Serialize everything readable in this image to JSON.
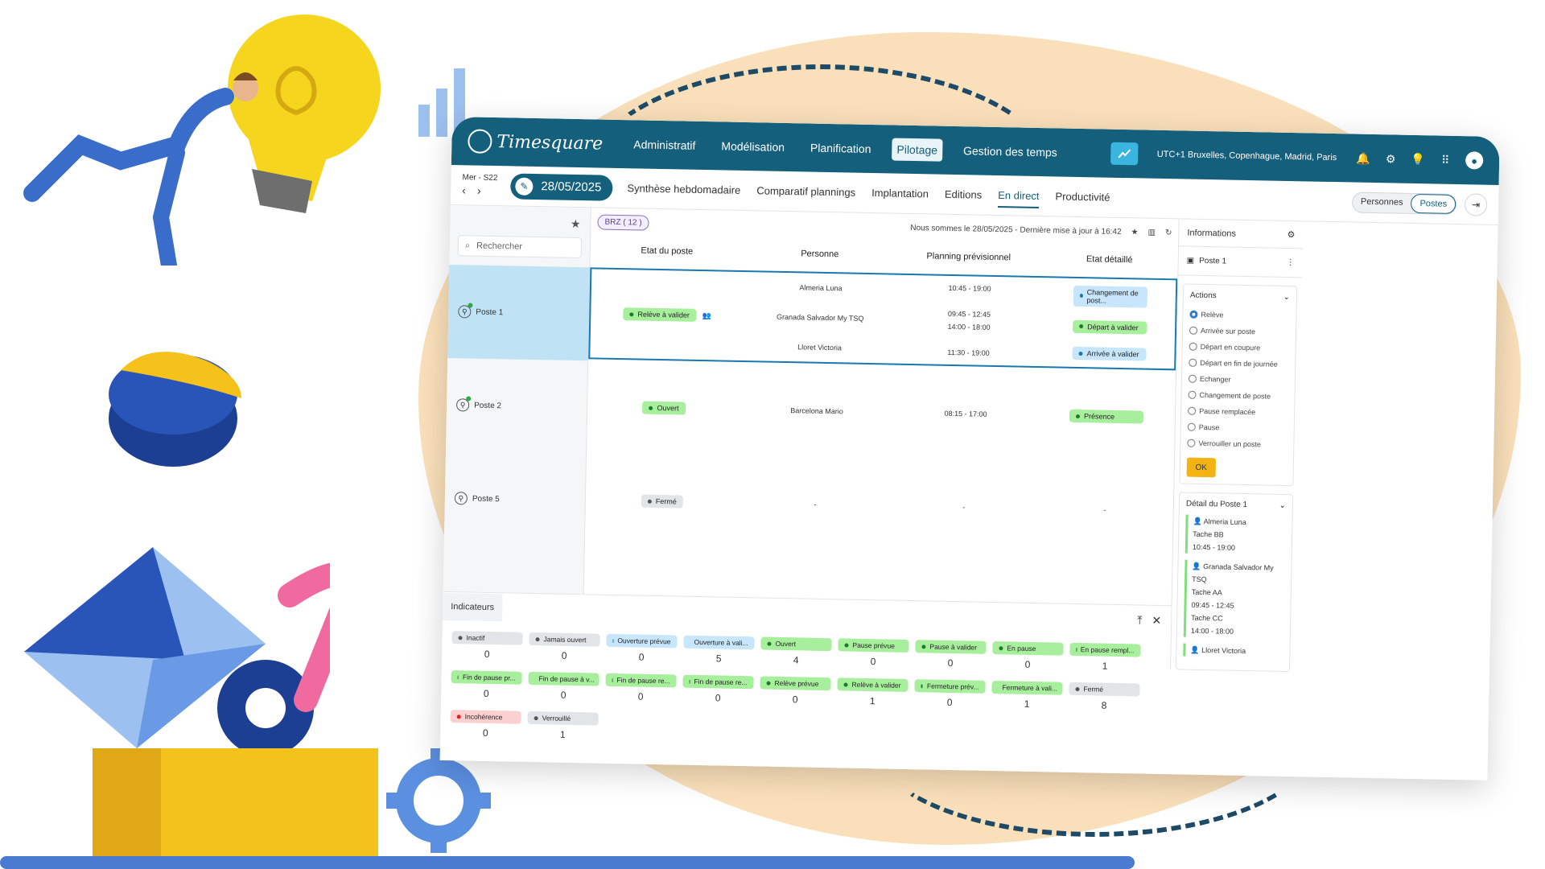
{
  "colors": {
    "primary": "#145f7c",
    "accent": "#39b5e0",
    "ok_button": "#f3b312",
    "green": "#a7ef9c",
    "blue": "#c7e6fb",
    "grey": "#e1e5e8",
    "red": "#fbd0d0"
  },
  "header": {
    "logo": "Timesquare",
    "menu": [
      "Administratif",
      "Modélisation",
      "Planification",
      "Pilotage",
      "Gestion des temps"
    ],
    "active_menu": "Pilotage",
    "timezone": "UTC+1 Bruxelles, Copenhague, Madrid, Paris",
    "icons": [
      "trend-icon",
      "bell-icon",
      "gear-icon",
      "bulb-icon",
      "apps-icon",
      "user-icon"
    ]
  },
  "subnav": {
    "week": "Mer - S22",
    "date": "28/05/2025",
    "tabs": [
      "Synthèse hebdomadaire",
      "Comparatif plannings",
      "Implantation",
      "Editions",
      "En direct",
      "Productivité"
    ],
    "active_tab": "En direct",
    "toggle": [
      "Personnes",
      "Postes"
    ],
    "toggle_active": "Postes"
  },
  "sidebar": {
    "search_placeholder": "Rechercher",
    "posts": [
      "Poste 1",
      "Poste 2",
      "Poste 5"
    ]
  },
  "main": {
    "filter": "BRZ ( 12 )",
    "status": "Nous sommes le 28/05/2025 - Dernière mise à jour à 16:42",
    "columns": [
      "Etat du poste",
      "Personne",
      "Planning prévisionnel",
      "Etat détaillé"
    ],
    "rows": [
      {
        "state": "Relève à valider",
        "people": [
          "Almeria Luna",
          "Granada Salvador My TSQ",
          "Lloret Victoria"
        ],
        "planning": [
          "10:45 - 19:00",
          "09:45 - 12:45",
          "14:00 - 18:00",
          "11:30 - 19:00"
        ],
        "details": [
          "Changement de post...",
          "Départ à valider",
          "Arrivée à valider"
        ]
      },
      {
        "state": "Ouvert",
        "people": [
          "Barcelona Mario"
        ],
        "planning": [
          "08:15 - 17:00"
        ],
        "details": [
          "Présence"
        ]
      },
      {
        "state": "Fermé",
        "people": [
          "-"
        ],
        "planning": [
          "-"
        ],
        "details": [
          "-"
        ]
      }
    ]
  },
  "info_panel": {
    "title": "Informations",
    "poste": "Poste 1",
    "actions_title": "Actions",
    "actions": [
      "Relève",
      "Arrivée sur poste",
      "Départ en coupure",
      "Départ en fin de journée",
      "Echanger",
      "Changement de poste",
      "Pause remplacée",
      "Pause",
      "Verrouiller un poste"
    ],
    "selected_action": "Relève",
    "ok": "OK",
    "detail_title": "Détail du Poste 1",
    "detail": [
      {
        "name": "Almeria Luna",
        "lines": [
          "Tache BB",
          "10:45 - 19:00"
        ]
      },
      {
        "name": "Granada Salvador My TSQ",
        "lines": [
          "Tache AA",
          "09:45 - 12:45",
          "Tache CC",
          "14:00 - 18:00"
        ]
      },
      {
        "name": "Lloret Victoria",
        "lines": []
      }
    ]
  },
  "indicators": {
    "title": "Indicateurs",
    "items": [
      {
        "label": "Inactif",
        "value": "0",
        "color": "grey"
      },
      {
        "label": "Jamais ouvert",
        "value": "0",
        "color": "grey"
      },
      {
        "label": "Ouverture prévue",
        "value": "0",
        "color": "blue"
      },
      {
        "label": "Ouverture à vali...",
        "value": "5",
        "color": "blue"
      },
      {
        "label": "Ouvert",
        "value": "4",
        "color": "green"
      },
      {
        "label": "Pause prévue",
        "value": "0",
        "color": "green"
      },
      {
        "label": "Pause à valider",
        "value": "0",
        "color": "green"
      },
      {
        "label": "En pause",
        "value": "0",
        "color": "green"
      },
      {
        "label": "En pause rempl...",
        "value": "1",
        "color": "green"
      },
      {
        "label": "Fin de pause pr...",
        "value": "0",
        "color": "green"
      },
      {
        "label": "Fin de pause à v...",
        "value": "0",
        "color": "green"
      },
      {
        "label": "Fin de pause re...",
        "value": "0",
        "color": "green"
      },
      {
        "label": "Fin de pause re...",
        "value": "0",
        "color": "green"
      },
      {
        "label": "Relève prévue",
        "value": "0",
        "color": "green"
      },
      {
        "label": "Relève à valider",
        "value": "1",
        "color": "green"
      },
      {
        "label": "Fermeture prév...",
        "value": "0",
        "color": "green"
      },
      {
        "label": "Fermeture à vali...",
        "value": "1",
        "color": "green"
      },
      {
        "label": "Fermé",
        "value": "8",
        "color": "grey"
      },
      {
        "label": "Incohérence",
        "value": "0",
        "color": "red"
      },
      {
        "label": "Verrouillé",
        "value": "1",
        "color": "grey"
      }
    ]
  }
}
